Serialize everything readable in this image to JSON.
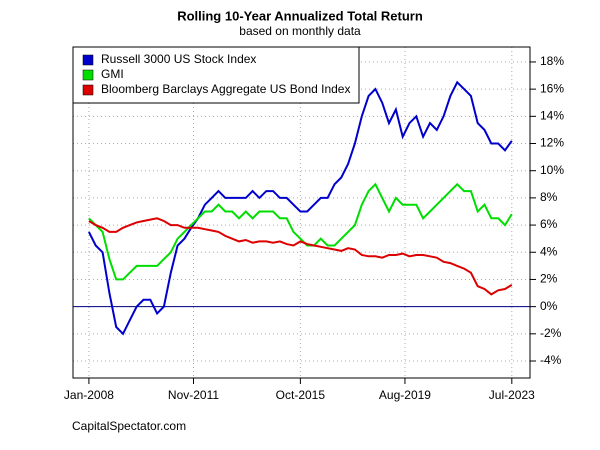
{
  "chart_data": {
    "type": "line",
    "title": "Rolling 10-Year Annualized Total Return",
    "subtitle": "based on monthly data",
    "annotation": "CapitalSpectator.com",
    "x": [
      "2008-01",
      "2008-04",
      "2008-07",
      "2008-10",
      "2009-01",
      "2009-04",
      "2009-07",
      "2009-10",
      "2010-01",
      "2010-04",
      "2010-07",
      "2010-10",
      "2011-01",
      "2011-04",
      "2011-07",
      "2011-10",
      "2012-01",
      "2012-04",
      "2012-07",
      "2012-10",
      "2013-01",
      "2013-04",
      "2013-07",
      "2013-10",
      "2014-01",
      "2014-04",
      "2014-07",
      "2014-10",
      "2015-01",
      "2015-04",
      "2015-07",
      "2015-10",
      "2016-01",
      "2016-04",
      "2016-07",
      "2016-10",
      "2017-01",
      "2017-04",
      "2017-07",
      "2017-10",
      "2018-01",
      "2018-04",
      "2018-07",
      "2018-10",
      "2019-01",
      "2019-04",
      "2019-07",
      "2019-10",
      "2020-01",
      "2020-04",
      "2020-07",
      "2020-10",
      "2021-01",
      "2021-04",
      "2021-07",
      "2021-10",
      "2022-01",
      "2022-04",
      "2022-07",
      "2022-10",
      "2023-01",
      "2023-04",
      "2023-07"
    ],
    "series": [
      {
        "name": "Russell 3000 US Stock Index",
        "color": "#0000cc",
        "values": [
          5.5,
          4.5,
          4.0,
          1.0,
          -1.5,
          -2.0,
          -1.0,
          0.0,
          0.5,
          0.5,
          -0.5,
          0.0,
          2.5,
          4.5,
          5.0,
          5.8,
          6.5,
          7.5,
          8.0,
          8.5,
          8.0,
          8.0,
          8.0,
          8.0,
          8.5,
          8.0,
          8.5,
          8.5,
          8.0,
          8.0,
          7.5,
          7.0,
          7.0,
          7.5,
          8.0,
          8.0,
          9.0,
          9.5,
          10.5,
          12.0,
          14.0,
          15.5,
          16.0,
          15.0,
          13.5,
          14.5,
          12.5,
          13.5,
          14.0,
          12.5,
          13.5,
          13.0,
          14.0,
          15.5,
          16.5,
          16.0,
          15.5,
          13.5,
          13.0,
          12.0,
          12.0,
          11.5,
          12.2
        ]
      },
      {
        "name": "GMI",
        "color": "#00dd00",
        "values": [
          6.5,
          6.0,
          5.5,
          3.5,
          2.0,
          2.0,
          2.5,
          3.0,
          3.0,
          3.0,
          3.0,
          3.5,
          4.0,
          5.0,
          5.5,
          6.0,
          6.5,
          7.0,
          7.0,
          7.5,
          7.0,
          7.0,
          6.5,
          7.0,
          6.5,
          7.0,
          7.0,
          7.0,
          6.5,
          6.5,
          5.5,
          5.0,
          4.5,
          4.5,
          5.0,
          4.5,
          4.5,
          5.0,
          5.5,
          6.0,
          7.5,
          8.5,
          9.0,
          8.0,
          7.0,
          8.0,
          7.5,
          7.5,
          7.5,
          6.5,
          7.0,
          7.5,
          8.0,
          8.5,
          9.0,
          8.5,
          8.5,
          7.0,
          7.5,
          6.5,
          6.5,
          6.0,
          6.8
        ]
      },
      {
        "name": "Bloomberg Barclays Aggregate US Bond Index",
        "color": "#dd0000",
        "values": [
          6.3,
          6.0,
          5.8,
          5.5,
          5.5,
          5.8,
          6.0,
          6.2,
          6.3,
          6.4,
          6.5,
          6.3,
          6.0,
          6.0,
          5.8,
          5.8,
          5.8,
          5.7,
          5.6,
          5.5,
          5.2,
          5.0,
          4.8,
          4.9,
          4.7,
          4.8,
          4.8,
          4.7,
          4.8,
          4.6,
          4.5,
          4.8,
          4.6,
          4.5,
          4.4,
          4.3,
          4.2,
          4.1,
          4.3,
          4.2,
          3.8,
          3.7,
          3.7,
          3.6,
          3.8,
          3.8,
          3.9,
          3.7,
          3.8,
          3.8,
          3.7,
          3.6,
          3.3,
          3.2,
          3.0,
          2.8,
          2.5,
          1.5,
          1.3,
          0.9,
          1.2,
          1.3,
          1.6
        ]
      }
    ],
    "xlim": [
      "2007-06",
      "2024-03"
    ],
    "xticks": [
      {
        "value": "2008-01",
        "label": "Jan-2008"
      },
      {
        "value": "2011-11",
        "label": "Nov-2011"
      },
      {
        "value": "2015-10",
        "label": "Oct-2015"
      },
      {
        "value": "2019-08",
        "label": "Aug-2019"
      },
      {
        "value": "2023-07",
        "label": "Jul-2023"
      }
    ],
    "ylim": [
      -5.25,
      19.1
    ],
    "yticks": [
      {
        "value": -4,
        "label": "-4%"
      },
      {
        "value": -2,
        "label": "-2%"
      },
      {
        "value": 0,
        "label": "0%"
      },
      {
        "value": 2,
        "label": "2%"
      },
      {
        "value": 4,
        "label": "4%"
      },
      {
        "value": 6,
        "label": "6%"
      },
      {
        "value": 8,
        "label": "8%"
      },
      {
        "value": 10,
        "label": "10%"
      },
      {
        "value": 12,
        "label": "12%"
      },
      {
        "value": 14,
        "label": "14%"
      },
      {
        "value": 16,
        "label": "16%"
      },
      {
        "value": 18,
        "label": "18%"
      }
    ],
    "grid": true,
    "legend": "top-left"
  }
}
